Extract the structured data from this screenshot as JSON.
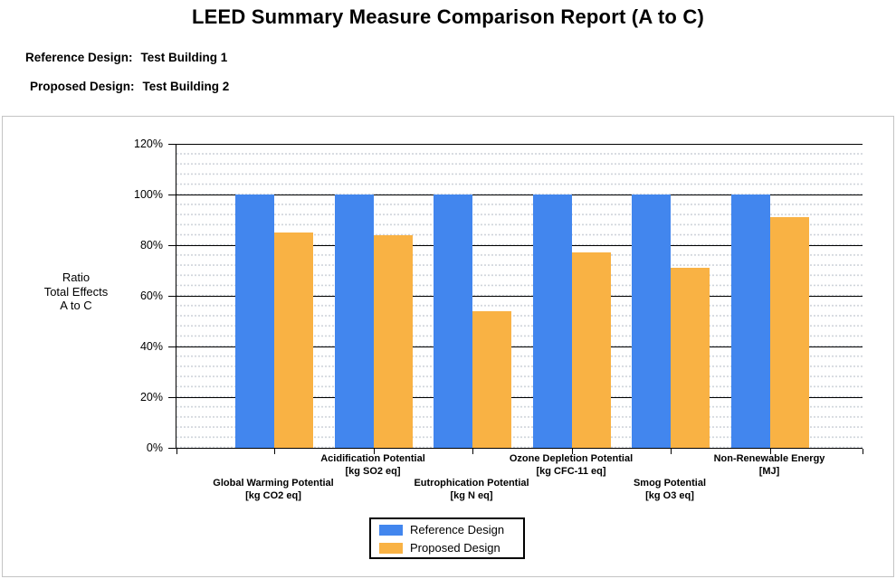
{
  "header": {
    "title": "LEED Summary Measure Comparison Report (A to C)",
    "reference_label": "Reference Design:",
    "reference_value": "Test Building 1",
    "proposed_label": "Proposed Design:",
    "proposed_value": "Test Building 2"
  },
  "chart_data": {
    "type": "bar",
    "ylabel": "Ratio\nTotal Effects\nA to C",
    "ylim": [
      0,
      120
    ],
    "ytick_labels": [
      "0%",
      "20%",
      "40%",
      "60%",
      "80%",
      "100%",
      "120%"
    ],
    "grid": {
      "major": "solid black every 20%",
      "minor": "dotted gray every 4%"
    },
    "legend_position": "bottom-center",
    "categories": [
      {
        "name": "Global Warming Potential",
        "unit": "[kg CO2 eq]",
        "label_row": "lower"
      },
      {
        "name": "Acidification Potential",
        "unit": "[kg SO2 eq]",
        "label_row": "upper"
      },
      {
        "name": "Eutrophication Potential",
        "unit": "[kg N eq]",
        "label_row": "lower"
      },
      {
        "name": "Ozone Depletion Potential",
        "unit": "[kg CFC-11 eq]",
        "label_row": "upper"
      },
      {
        "name": "Smog Potential",
        "unit": "[kg O3 eq]",
        "label_row": "lower"
      },
      {
        "name": "Non-Renewable Energy",
        "unit": "[MJ]",
        "label_row": "upper"
      }
    ],
    "series": [
      {
        "name": "Reference Design",
        "color": "#4286EE",
        "values": [
          100,
          100,
          100,
          100,
          100,
          100
        ]
      },
      {
        "name": "Proposed Design",
        "color": "#F9B244",
        "values": [
          85,
          84,
          54,
          77,
          71,
          91
        ]
      }
    ]
  }
}
